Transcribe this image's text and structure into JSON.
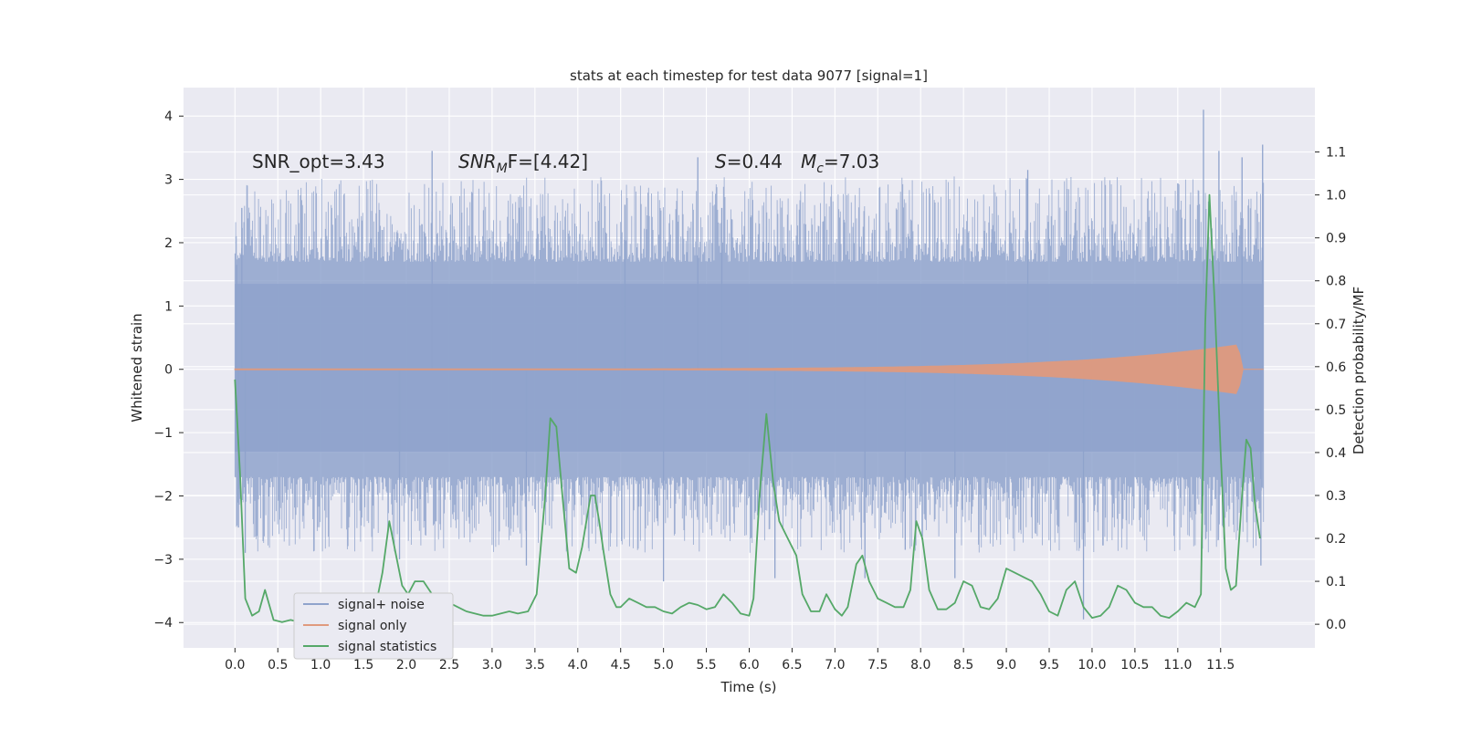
{
  "chart_data": {
    "type": "line",
    "title": "stats at each timestep for test data 9077 [signal=1]",
    "xlabel": "Time (s)",
    "ylabel_left": "Whitened strain",
    "ylabel_right": "Detection probability/MF",
    "xlim": [
      -0.6,
      12.6
    ],
    "ylim_left": [
      -4.4,
      4.45
    ],
    "ylim_right": [
      -0.055,
      1.25
    ],
    "x_ticks": [
      0.0,
      0.5,
      1.0,
      1.5,
      2.0,
      2.5,
      3.0,
      3.5,
      4.0,
      4.5,
      5.0,
      5.5,
      6.0,
      6.5,
      7.0,
      7.5,
      8.0,
      8.5,
      9.0,
      9.5,
      10.0,
      10.5,
      11.0,
      11.5
    ],
    "x_tick_labels": [
      "0.0",
      "0.5",
      "1.0",
      "1.5",
      "2.0",
      "2.5",
      "3.0",
      "3.5",
      "4.0",
      "4.5",
      "5.0",
      "5.5",
      "6.0",
      "6.5",
      "7.0",
      "7.5",
      "8.0",
      "8.5",
      "9.0",
      "9.5",
      "10.0",
      "10.5",
      "11.0",
      "11.5"
    ],
    "y_left_ticks": [
      -4,
      -3,
      -2,
      -1,
      0,
      1,
      2,
      3,
      4
    ],
    "y_left_tick_labels": [
      "−4",
      "−3",
      "−2",
      "−1",
      "0",
      "1",
      "2",
      "3",
      "4"
    ],
    "y_right_ticks": [
      0.0,
      0.1,
      0.2,
      0.3,
      0.4,
      0.5,
      0.6,
      0.7,
      0.8,
      0.9,
      1.0,
      1.1
    ],
    "y_right_tick_labels": [
      "0.0",
      "0.1",
      "0.2",
      "0.3",
      "0.4",
      "0.5",
      "0.6",
      "0.7",
      "0.8",
      "0.9",
      "1.0",
      "1.1"
    ],
    "annotations": {
      "snr_opt": "SNR_opt=3.43",
      "snr_mf_main": "SNR",
      "snr_mf_sub": "M",
      "snr_mf_rest": "F=[4.42]",
      "s_main": "S",
      "s_value": "=0.44",
      "mc_main": "M",
      "mc_sub": "c",
      "mc_value": "=7.03"
    },
    "legend": {
      "placement": "lower-left",
      "entries": [
        "signal+ noise",
        "signal only",
        "signal statistics"
      ]
    },
    "colors": {
      "background": "#eaeaf2",
      "grid": "#ffffff",
      "noise": "#8fa3cc",
      "signal": "#e09a7e",
      "stat": "#55a868",
      "text": "#262626"
    },
    "series": [
      {
        "name": "signal+ noise",
        "x_range": [
          0.0,
          12.0
        ],
        "band": [
          -1.3,
          1.35
        ],
        "extreme_spikes": [
          [
            0.02,
            1.65
          ],
          [
            0.04,
            -2.5
          ],
          [
            0.08,
            2.55
          ],
          [
            0.12,
            -2.9
          ],
          [
            1.92,
            -3.0
          ],
          [
            2.3,
            3.45
          ],
          [
            3.4,
            -3.1
          ],
          [
            4.55,
            2.6
          ],
          [
            5.0,
            -3.35
          ],
          [
            5.4,
            3.35
          ],
          [
            5.68,
            2.55
          ],
          [
            6.3,
            -3.3
          ],
          [
            7.35,
            -3.3
          ],
          [
            7.82,
            -2.85
          ],
          [
            8.4,
            -3.3
          ],
          [
            9.25,
            3.15
          ],
          [
            9.9,
            -3.95
          ],
          [
            11.3,
            4.1
          ],
          [
            11.48,
            3.45
          ],
          [
            11.75,
            3.35
          ],
          [
            11.97,
            -3.1
          ],
          [
            11.99,
            3.55
          ]
        ]
      },
      {
        "name": "signal only",
        "x_range": [
          0.0,
          12.0
        ],
        "peak_x": 11.7,
        "peak_amplitude": 0.38
      },
      {
        "name": "signal statistics",
        "axis": "right",
        "x": [
          0.0,
          0.06,
          0.12,
          0.2,
          0.28,
          0.35,
          0.45,
          0.55,
          0.65,
          0.75,
          0.85,
          0.95,
          1.05,
          1.15,
          1.25,
          1.35,
          1.45,
          1.55,
          1.65,
          1.72,
          1.8,
          1.88,
          1.95,
          2.02,
          2.1,
          2.2,
          2.3,
          2.4,
          2.5,
          2.6,
          2.7,
          2.8,
          2.9,
          3.0,
          3.1,
          3.2,
          3.3,
          3.42,
          3.52,
          3.62,
          3.68,
          3.75,
          3.82,
          3.9,
          3.98,
          4.05,
          4.15,
          4.2,
          4.25,
          4.3,
          4.38,
          4.45,
          4.5,
          4.6,
          4.7,
          4.8,
          4.9,
          5.0,
          5.1,
          5.2,
          5.3,
          5.4,
          5.5,
          5.6,
          5.7,
          5.8,
          5.9,
          6.0,
          6.05,
          6.12,
          6.2,
          6.28,
          6.35,
          6.45,
          6.55,
          6.62,
          6.72,
          6.82,
          6.9,
          7.0,
          7.08,
          7.15,
          7.25,
          7.32,
          7.4,
          7.5,
          7.6,
          7.7,
          7.8,
          7.88,
          7.95,
          8.02,
          8.1,
          8.2,
          8.3,
          8.4,
          8.5,
          8.6,
          8.7,
          8.8,
          8.9,
          9.0,
          9.1,
          9.2,
          9.3,
          9.4,
          9.5,
          9.6,
          9.7,
          9.8,
          9.9,
          10.0,
          10.1,
          10.2,
          10.3,
          10.4,
          10.5,
          10.6,
          10.7,
          10.8,
          10.9,
          11.0,
          11.1,
          11.2,
          11.27,
          11.32,
          11.37,
          11.43,
          11.5,
          11.56,
          11.62,
          11.68,
          11.75,
          11.8,
          11.85,
          11.9,
          11.96
        ],
        "values": [
          0.57,
          0.35,
          0.06,
          0.02,
          0.03,
          0.08,
          0.01,
          0.005,
          0.01,
          0.005,
          0.006,
          0.007,
          0.006,
          0.01,
          0.006,
          0.01,
          0.045,
          0.04,
          0.05,
          0.12,
          0.24,
          0.16,
          0.09,
          0.07,
          0.1,
          0.1,
          0.07,
          0.055,
          0.05,
          0.04,
          0.03,
          0.025,
          0.02,
          0.02,
          0.025,
          0.03,
          0.025,
          0.03,
          0.07,
          0.3,
          0.48,
          0.46,
          0.3,
          0.13,
          0.12,
          0.18,
          0.3,
          0.3,
          0.24,
          0.17,
          0.07,
          0.04,
          0.04,
          0.06,
          0.05,
          0.04,
          0.04,
          0.03,
          0.025,
          0.04,
          0.05,
          0.045,
          0.035,
          0.04,
          0.07,
          0.05,
          0.025,
          0.02,
          0.06,
          0.3,
          0.49,
          0.33,
          0.24,
          0.2,
          0.16,
          0.07,
          0.03,
          0.03,
          0.07,
          0.035,
          0.02,
          0.04,
          0.14,
          0.16,
          0.1,
          0.06,
          0.05,
          0.04,
          0.04,
          0.08,
          0.24,
          0.2,
          0.08,
          0.035,
          0.035,
          0.05,
          0.1,
          0.09,
          0.04,
          0.035,
          0.06,
          0.13,
          0.12,
          0.11,
          0.1,
          0.07,
          0.03,
          0.02,
          0.08,
          0.1,
          0.04,
          0.015,
          0.02,
          0.04,
          0.09,
          0.08,
          0.05,
          0.04,
          0.04,
          0.02,
          0.015,
          0.03,
          0.05,
          0.04,
          0.07,
          0.7,
          1.0,
          0.75,
          0.4,
          0.13,
          0.08,
          0.09,
          0.3,
          0.43,
          0.41,
          0.28,
          0.2
        ]
      }
    ]
  }
}
